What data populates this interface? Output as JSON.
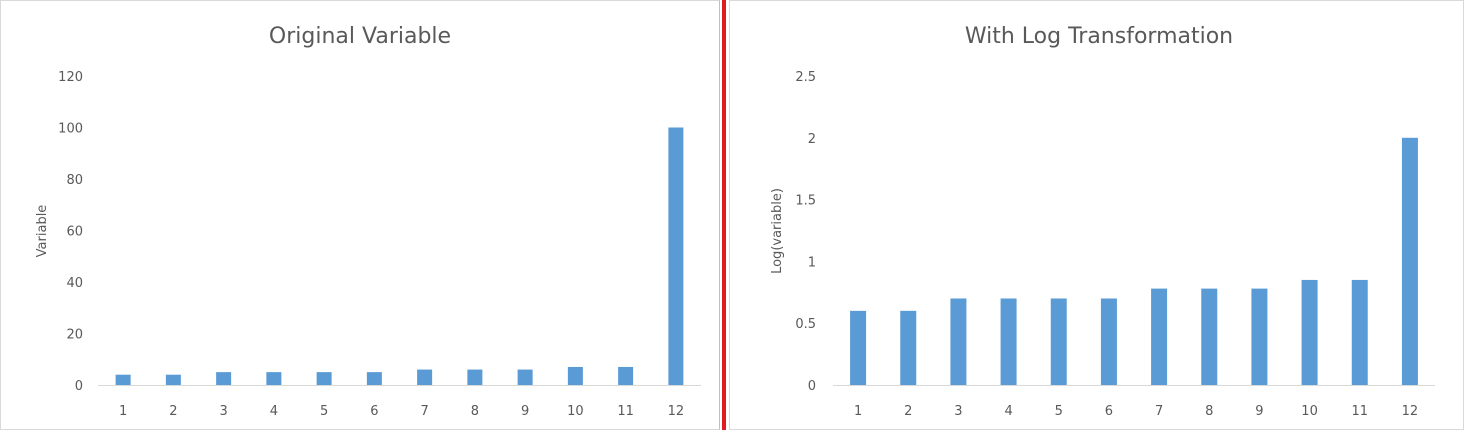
{
  "chart_data": [
    {
      "type": "bar",
      "title": "Original Variable",
      "xlabel": "",
      "ylabel": "Variable",
      "categories": [
        "1",
        "2",
        "3",
        "4",
        "5",
        "6",
        "7",
        "8",
        "9",
        "10",
        "11",
        "12"
      ],
      "values": [
        4,
        4,
        5,
        5,
        5,
        5,
        6,
        6,
        6,
        7,
        7,
        100
      ],
      "ylim": [
        0,
        120
      ],
      "yticks": [
        "0",
        "20",
        "40",
        "60",
        "80",
        "100",
        "120"
      ],
      "grid": false,
      "color": "#5b9bd5"
    },
    {
      "type": "bar",
      "title": "With Log Transformation",
      "xlabel": "",
      "ylabel": "Log(variable)",
      "categories": [
        "1",
        "2",
        "3",
        "4",
        "5",
        "6",
        "7",
        "8",
        "9",
        "10",
        "11",
        "12"
      ],
      "values": [
        0.6,
        0.6,
        0.7,
        0.7,
        0.7,
        0.7,
        0.78,
        0.78,
        0.78,
        0.85,
        0.85,
        2.0
      ],
      "ylim": [
        0,
        2.5
      ],
      "yticks": [
        "0",
        "0.5",
        "1",
        "1.5",
        "2",
        "2.5"
      ],
      "grid": false,
      "color": "#5b9bd5"
    }
  ]
}
